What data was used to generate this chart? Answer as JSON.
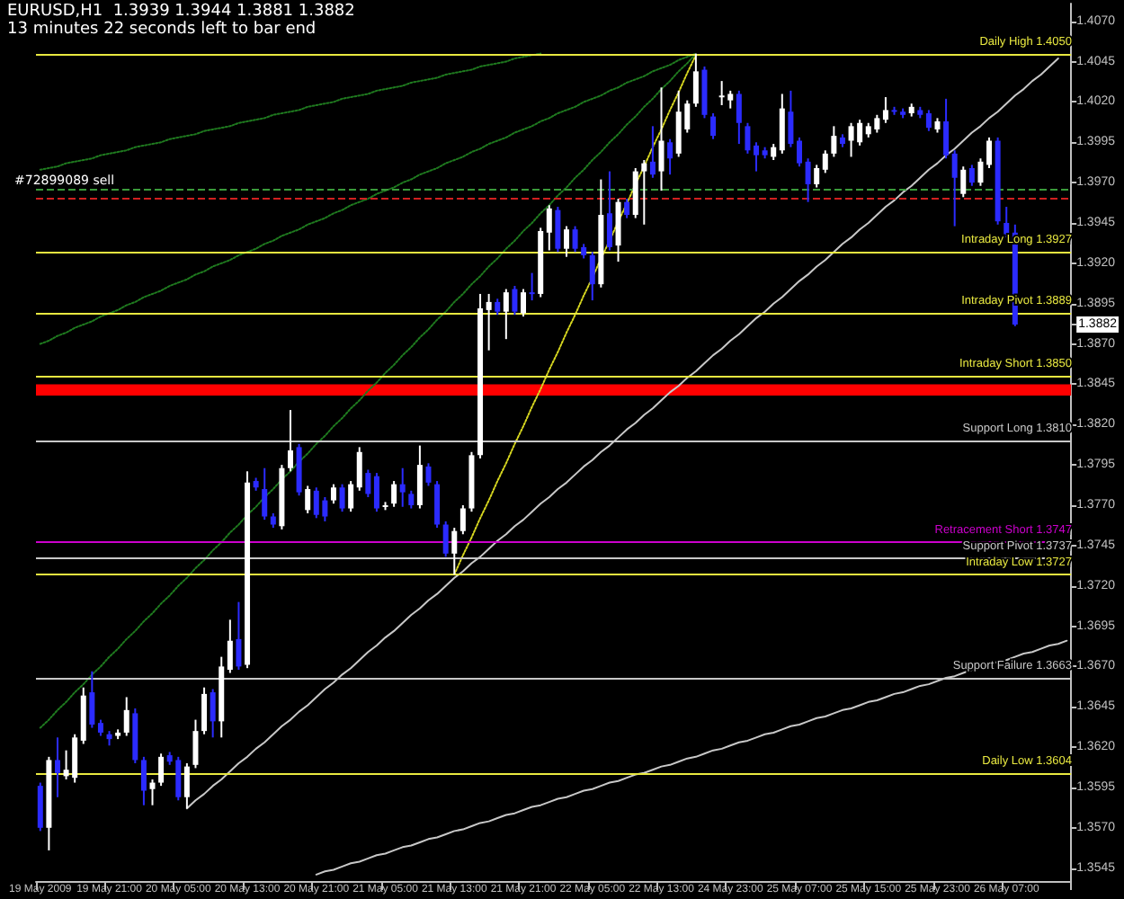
{
  "chart_data": {
    "type": "candlestick",
    "title": "EURUSD,H1  1.3939 1.3944 1.3881 1.3882",
    "subtitle": "13 minutes 22 seconds left to bar end",
    "categories": [
      "19 May 2009",
      null,
      null,
      null,
      null,
      null,
      null,
      null,
      "19 May 21:00",
      null,
      null,
      null,
      null,
      null,
      null,
      null,
      "20 May 05:00",
      null,
      null,
      null,
      null,
      null,
      null,
      null,
      "20 May 13:00",
      null,
      null,
      null,
      null,
      null,
      null,
      null,
      "20 May 21:00",
      null,
      null,
      null,
      null,
      null,
      null,
      null,
      "21 May 05:00",
      null,
      null,
      null,
      null,
      null,
      null,
      null,
      "21 May 13:00",
      null,
      null,
      null,
      null,
      null,
      null,
      null,
      "21 May 21:00",
      null,
      null,
      null,
      null,
      null,
      null,
      null,
      "22 May 05:00",
      null,
      null,
      null,
      null,
      null,
      null,
      null,
      "22 May 13:00",
      null,
      null,
      null,
      null,
      null,
      null,
      null,
      "24 May 23:00",
      null,
      null,
      null,
      null,
      null,
      null,
      null,
      "25 May 07:00",
      null,
      null,
      null,
      null,
      null,
      null,
      null,
      "25 May 15:00",
      null,
      null,
      null,
      null,
      null,
      null,
      null,
      "25 May 23:00",
      null,
      null,
      null,
      null,
      null,
      null,
      null,
      "26 May 07:00",
      null,
      null,
      null,
      null,
      null,
      null,
      null
    ],
    "ohlc": [
      [
        1.3596,
        1.3598,
        1.3568,
        1.357
      ],
      [
        1.357,
        1.3614,
        1.3556,
        1.3612
      ],
      [
        1.3612,
        1.3626,
        1.3589,
        1.3604
      ],
      [
        1.3602,
        1.3618,
        1.36,
        1.3606
      ],
      [
        1.3601,
        1.3628,
        1.3598,
        1.3626
      ],
      [
        1.3624,
        1.3657,
        1.3622,
        1.3652
      ],
      [
        1.3654,
        1.3667,
        1.3632,
        1.3634
      ],
      [
        1.3635,
        1.3637,
        1.3627,
        1.3629
      ],
      [
        1.3628,
        1.363,
        1.3621,
        1.3625
      ],
      [
        1.3627,
        1.3631,
        1.3625,
        1.3629
      ],
      [
        1.3629,
        1.3651,
        1.3627,
        1.3643
      ],
      [
        1.3641,
        1.3644,
        1.361,
        1.3612
      ],
      [
        1.3612,
        1.3614,
        1.3584,
        1.3593
      ],
      [
        1.3594,
        1.36,
        1.3584,
        1.3598
      ],
      [
        1.3598,
        1.3616,
        1.3596,
        1.3614
      ],
      [
        1.3615,
        1.3617,
        1.3609,
        1.3611
      ],
      [
        1.3612,
        1.3614,
        1.3587,
        1.3589
      ],
      [
        1.3589,
        1.361,
        1.3582,
        1.3608
      ],
      [
        1.3609,
        1.3637,
        1.3607,
        1.363
      ],
      [
        1.363,
        1.3657,
        1.3628,
        1.3653
      ],
      [
        1.3654,
        1.3656,
        1.3626,
        1.3636
      ],
      [
        1.3636,
        1.3676,
        1.3626,
        1.367
      ],
      [
        1.3668,
        1.3699,
        1.3666,
        1.3686
      ],
      [
        1.3687,
        1.371,
        1.3668,
        1.367
      ],
      [
        1.3671,
        1.3791,
        1.3669,
        1.3784
      ],
      [
        1.3785,
        1.3787,
        1.3779,
        1.3781
      ],
      [
        1.378,
        1.3793,
        1.3761,
        1.3763
      ],
      [
        1.3763,
        1.3765,
        1.3756,
        1.3758
      ],
      [
        1.3757,
        1.3795,
        1.3755,
        1.3793
      ],
      [
        1.3793,
        1.3829,
        1.3791,
        1.3804
      ],
      [
        1.3806,
        1.3808,
        1.3776,
        1.3778
      ],
      [
        1.3767,
        1.3782,
        1.3765,
        1.378
      ],
      [
        1.3779,
        1.3781,
        1.3762,
        1.3764
      ],
      [
        1.3773,
        1.3775,
        1.376,
        1.3763
      ],
      [
        1.3773,
        1.3783,
        1.3771,
        1.3781
      ],
      [
        1.3781,
        1.3783,
        1.3766,
        1.3768
      ],
      [
        1.3768,
        1.3785,
        1.3766,
        1.3783
      ],
      [
        1.3781,
        1.3806,
        1.3779,
        1.3803
      ],
      [
        1.379,
        1.3792,
        1.3775,
        1.3777
      ],
      [
        1.3788,
        1.379,
        1.3766,
        1.3768
      ],
      [
        1.3769,
        1.3772,
        1.3767,
        1.377
      ],
      [
        1.3771,
        1.3785,
        1.3769,
        1.3783
      ],
      [
        1.3783,
        1.3793,
        1.3769,
        1.3778
      ],
      [
        1.3777,
        1.3779,
        1.3768,
        1.377
      ],
      [
        1.377,
        1.3807,
        1.3768,
        1.3795
      ],
      [
        1.3794,
        1.3796,
        1.3782,
        1.3784
      ],
      [
        1.3783,
        1.3785,
        1.3756,
        1.3758
      ],
      [
        1.3758,
        1.376,
        1.3738,
        1.374
      ],
      [
        1.374,
        1.3756,
        1.3727,
        1.3754
      ],
      [
        1.3754,
        1.377,
        1.3752,
        1.3768
      ],
      [
        1.3768,
        1.3803,
        1.3766,
        1.3801
      ],
      [
        1.3801,
        1.3901,
        1.3799,
        1.3892
      ],
      [
        1.3891,
        1.3901,
        1.3866,
        1.3896
      ],
      [
        1.3896,
        1.3898,
        1.3888,
        1.389
      ],
      [
        1.389,
        1.3904,
        1.3873,
        1.3902
      ],
      [
        1.3904,
        1.3906,
        1.3888,
        1.389
      ],
      [
        1.3889,
        1.3904,
        1.3887,
        1.3902
      ],
      [
        1.3902,
        1.3914,
        1.3897,
        1.3901
      ],
      [
        1.3901,
        1.3942,
        1.3899,
        1.394
      ],
      [
        1.3939,
        1.3956,
        1.3928,
        1.3954
      ],
      [
        1.3953,
        1.3955,
        1.3927,
        1.3929
      ],
      [
        1.3929,
        1.3943,
        1.3924,
        1.3941
      ],
      [
        1.3941,
        1.3943,
        1.3927,
        1.3929
      ],
      [
        1.393,
        1.3932,
        1.3923,
        1.3925
      ],
      [
        1.3925,
        1.3927,
        1.3897,
        1.3907
      ],
      [
        1.3907,
        1.3972,
        1.3905,
        1.395
      ],
      [
        1.3951,
        1.3977,
        1.3928,
        1.393
      ],
      [
        1.3931,
        1.396,
        1.3921,
        1.3958
      ],
      [
        1.3958,
        1.396,
        1.3948,
        1.395
      ],
      [
        1.395,
        1.3979,
        1.3948,
        1.3977
      ],
      [
        1.3977,
        1.3984,
        1.3944,
        1.3982
      ],
      [
        1.3983,
        1.4005,
        1.3973,
        1.3975
      ],
      [
        1.3977,
        1.4029,
        1.3965,
        1.3996
      ],
      [
        1.3995,
        1.3997,
        1.3975,
        1.3985
      ],
      [
        1.3988,
        1.4027,
        1.3986,
        1.4014
      ],
      [
        1.4003,
        1.4021,
        1.4001,
        1.4019
      ],
      [
        1.4019,
        1.405,
        1.4017,
        1.4039
      ],
      [
        1.404,
        1.4042,
        1.401,
        1.4012
      ],
      [
        1.4011,
        1.4013,
        1.3997,
        1.3999
      ],
      [
        1.4023,
        1.4033,
        1.4018,
        1.4024
      ],
      [
        1.4021,
        1.4027,
        1.4016,
        1.4025
      ],
      [
        1.4025,
        1.4027,
        1.3994,
        1.4007
      ],
      [
        1.4005,
        1.4007,
        1.3988,
        1.399
      ],
      [
        1.3993,
        1.3995,
        1.3977,
        1.3987
      ],
      [
        1.399,
        1.3992,
        1.3985,
        1.3987
      ],
      [
        1.3986,
        1.3994,
        1.3984,
        1.3992
      ],
      [
        1.399,
        1.4025,
        1.3988,
        1.4016
      ],
      [
        1.4014,
        1.4027,
        1.3992,
        1.3994
      ],
      [
        1.3996,
        1.3998,
        1.398,
        1.3982
      ],
      [
        1.3983,
        1.3985,
        1.3958,
        1.3969
      ],
      [
        1.3969,
        1.3981,
        1.3967,
        1.3979
      ],
      [
        1.3978,
        1.399,
        1.3976,
        1.3988
      ],
      [
        1.3988,
        1.4005,
        1.3986,
        1.3999
      ],
      [
        1.3998,
        1.4,
        1.3992,
        1.3994
      ],
      [
        1.3996,
        1.4007,
        1.3986,
        1.4005
      ],
      [
        1.3995,
        1.4009,
        1.3993,
        1.4007
      ],
      [
        1.4,
        1.4007,
        1.3998,
        1.4005
      ],
      [
        1.4003,
        1.4012,
        1.4001,
        1.401
      ],
      [
        1.4009,
        1.4023,
        1.4007,
        1.4015
      ],
      [
        1.4015,
        1.4017,
        1.4012,
        1.4014
      ],
      [
        1.4014,
        1.4016,
        1.401,
        1.4012
      ],
      [
        1.4013,
        1.4019,
        1.4011,
        1.4017
      ],
      [
        1.4015,
        1.4017,
        1.401,
        1.4012
      ],
      [
        1.4013,
        1.4015,
        1.4002,
        1.4004
      ],
      [
        1.4003,
        1.401,
        1.4001,
        1.4008
      ],
      [
        1.4008,
        1.4022,
        1.3985,
        1.3987
      ],
      [
        1.3988,
        1.399,
        1.3943,
        1.3973
      ],
      [
        1.3963,
        1.398,
        1.3961,
        1.3978
      ],
      [
        1.3979,
        1.3981,
        1.3968,
        1.397
      ],
      [
        1.397,
        1.3985,
        1.3968,
        1.3983
      ],
      [
        1.3981,
        1.3998,
        1.3979,
        1.3996
      ],
      [
        1.3996,
        1.3998,
        1.3944,
        1.3946
      ],
      [
        1.3945,
        1.3955,
        1.3936,
        1.3938
      ],
      [
        1.3939,
        1.3944,
        1.3881,
        1.3882
      ],
      null,
      null,
      null,
      null,
      null,
      null
    ],
    "colors": [
      "#2b2bff",
      "#ffffff",
      "#2b2bff",
      "#ffffff",
      "#ffffff",
      "#ffffff",
      "#2b2bff",
      "#2b2bff",
      "#2b2bff",
      "#ffffff",
      "#ffffff",
      "#2b2bff",
      "#2b2bff",
      "#ffffff",
      "#ffffff",
      "#2b2bff",
      "#2b2bff",
      "#ffffff",
      "#ffffff",
      "#ffffff",
      "#2b2bff",
      "#ffffff",
      "#ffffff",
      "#2b2bff",
      "#ffffff",
      "#2b2bff",
      "#2b2bff",
      "#2b2bff",
      "#ffffff",
      "#ffffff",
      "#2b2bff",
      "#ffffff",
      "#2b2bff",
      "#2b2bff",
      "#ffffff",
      "#2b2bff",
      "#ffffff",
      "#ffffff",
      "#2b2bff",
      "#2b2bff",
      "#ffffff",
      "#ffffff",
      "#2b2bff",
      "#2b2bff",
      "#ffffff",
      "#2b2bff",
      "#2b2bff",
      "#2b2bff",
      "#ffffff",
      "#ffffff",
      "#ffffff",
      "#ffffff",
      "#ffffff",
      "#2b2bff",
      "#ffffff",
      "#2b2bff",
      "#ffffff",
      "#2b2bff",
      "#ffffff",
      "#ffffff",
      "#2b2bff",
      "#ffffff",
      "#2b2bff",
      "#2b2bff",
      "#2b2bff",
      "#ffffff",
      "#2b2bff",
      "#ffffff",
      "#2b2bff",
      "#ffffff",
      "#ffffff",
      "#2b2bff",
      "#ffffff",
      "#2b2bff",
      "#ffffff",
      "#ffffff",
      "#ffffff",
      "#2b2bff",
      "#2b2bff",
      "#ffffff",
      "#ffffff",
      "#2b2bff",
      "#2b2bff",
      "#2b2bff",
      "#2b2bff",
      "#ffffff",
      "#ffffff",
      "#2b2bff",
      "#2b2bff",
      "#2b2bff",
      "#ffffff",
      "#ffffff",
      "#ffffff",
      "#2b2bff",
      "#ffffff",
      "#ffffff",
      "#ffffff",
      "#ffffff",
      "#ffffff",
      "#2b2bff",
      "#2b2bff",
      "#ffffff",
      "#2b2bff",
      "#2b2bff",
      "#ffffff",
      "#2b2bff",
      "#2b2bff",
      "#ffffff",
      "#2b2bff",
      "#ffffff",
      "#ffffff",
      "#2b2bff",
      "#2b2bff",
      "#2b2bff",
      null,
      null,
      null,
      null,
      null,
      null
    ],
    "series": [
      {
        "type": "line",
        "color": "#c8c8c8",
        "line_style": "solid",
        "values": [
          null,
          null,
          null,
          null,
          null,
          null,
          null,
          null,
          null,
          null,
          null,
          null,
          null,
          null,
          null,
          null,
          null,
          1.3582,
          1.3587,
          1.3591,
          1.3596,
          1.36,
          1.3605,
          1.361,
          1.3614,
          1.3619,
          1.3623,
          1.3628,
          1.3633,
          1.3637,
          1.3642,
          1.3646,
          1.3651,
          1.3656,
          1.366,
          1.3665,
          1.3669,
          1.3674,
          1.3679,
          1.3683,
          1.3688,
          1.3692,
          1.3697,
          1.3702,
          1.3706,
          1.3711,
          1.3715,
          1.372,
          1.3725,
          1.3729,
          1.3734,
          1.3738,
          1.3743,
          1.3748,
          1.3752,
          1.3757,
          1.3761,
          1.3766,
          1.3771,
          1.3775,
          1.378,
          1.3784,
          1.3789,
          1.3794,
          1.3798,
          1.3803,
          1.3807,
          1.3812,
          1.3817,
          1.3821,
          1.3826,
          1.383,
          1.3835,
          1.384,
          1.3844,
          1.3849,
          1.3853,
          1.3858,
          1.3863,
          1.3867,
          1.3872,
          1.3876,
          1.3881,
          1.3886,
          1.389,
          1.3895,
          1.3899,
          1.3904,
          1.3909,
          1.3913,
          1.3918,
          1.3922,
          1.3927,
          1.3932,
          1.3936,
          1.3941,
          1.3945,
          1.395,
          1.3955,
          1.3959,
          1.3964,
          1.3968,
          1.3973,
          1.3978,
          1.3982,
          1.3987,
          1.3991,
          1.3996,
          1.4001,
          1.4005,
          1.401,
          1.4014,
          1.4019,
          1.4024,
          1.4028,
          1.4033,
          1.4037,
          1.4042,
          1.4047,
          null
        ]
      },
      {
        "type": "line",
        "color": "#c8c8c8",
        "line_style": "solid",
        "values": [
          null,
          null,
          null,
          null,
          null,
          null,
          null,
          null,
          null,
          null,
          null,
          null,
          null,
          null,
          null,
          null,
          null,
          null,
          null,
          null,
          null,
          null,
          null,
          null,
          null,
          null,
          null,
          null,
          null,
          null,
          null,
          null,
          1.3541,
          1.3543,
          1.3544,
          1.3546,
          1.3548,
          1.3549,
          1.3551,
          1.3553,
          1.3554,
          1.3556,
          1.3558,
          1.3559,
          1.3561,
          1.3563,
          1.3564,
          1.3566,
          1.3568,
          1.3569,
          1.3571,
          1.3573,
          1.3574,
          1.3576,
          1.3578,
          1.3579,
          1.3581,
          1.3583,
          1.3584,
          1.3586,
          1.3588,
          1.3589,
          1.3591,
          1.3593,
          1.3594,
          1.3596,
          1.3598,
          1.3599,
          1.3601,
          1.3603,
          1.3604,
          1.3606,
          1.3608,
          1.3609,
          1.3611,
          1.3613,
          1.3614,
          1.3616,
          1.3618,
          1.3619,
          1.3621,
          1.3623,
          1.3624,
          1.3626,
          1.3628,
          1.3629,
          1.3631,
          1.3633,
          1.3634,
          1.3636,
          1.3638,
          1.3639,
          1.3641,
          1.3643,
          1.3644,
          1.3646,
          1.3648,
          1.3649,
          1.3651,
          1.3653,
          1.3654,
          1.3656,
          1.3658,
          1.3659,
          1.3661,
          1.3663,
          1.3664,
          1.3666,
          1.3668,
          1.3669,
          1.3671,
          1.3673,
          1.3674,
          1.3676,
          1.3678,
          1.3679,
          1.3681,
          1.3683,
          1.3684,
          1.3686
        ]
      },
      {
        "type": "line",
        "color": "#d8d820",
        "line_style": "dotted",
        "values": [
          null,
          null,
          null,
          null,
          null,
          null,
          null,
          null,
          null,
          null,
          null,
          null,
          null,
          null,
          null,
          null,
          null,
          null,
          null,
          null,
          null,
          null,
          null,
          null,
          null,
          null,
          null,
          null,
          null,
          null,
          null,
          null,
          null,
          null,
          null,
          null,
          null,
          null,
          null,
          null,
          null,
          null,
          null,
          null,
          null,
          null,
          null,
          null,
          1.3727,
          1.3739,
          1.375,
          1.3762,
          1.3773,
          1.3785,
          1.3796,
          1.3808,
          1.3819,
          1.3831,
          1.3842,
          1.3854,
          1.3865,
          1.3877,
          1.3888,
          1.39,
          1.3911,
          1.3923,
          1.3934,
          1.3946,
          1.3957,
          1.3969,
          1.398,
          1.3992,
          1.4003,
          1.4015,
          1.4026,
          1.4038,
          1.4049,
          null,
          null,
          null,
          null,
          null,
          null,
          null,
          null,
          null,
          null,
          null,
          null,
          null,
          null,
          null,
          null,
          null,
          null,
          null,
          null,
          null,
          null,
          null,
          null,
          null,
          null,
          null,
          null,
          null,
          null,
          null,
          null,
          null,
          null,
          null,
          null,
          null,
          null,
          null,
          null,
          null,
          null,
          null
        ]
      },
      {
        "type": "line",
        "color": "#1f7a1f",
        "line_style": "dotted",
        "values": [
          1.3978,
          1.3979,
          1.398,
          1.3982,
          1.3983,
          1.3984,
          1.3985,
          1.3987,
          1.3988,
          1.3989,
          1.399,
          1.3992,
          1.3993,
          1.3994,
          1.3995,
          1.3997,
          1.3998,
          1.3999,
          1.4,
          1.4002,
          1.4003,
          1.4004,
          1.4005,
          1.4007,
          1.4008,
          1.4009,
          1.401,
          1.4012,
          1.4013,
          1.4014,
          1.4015,
          1.4017,
          1.4018,
          1.4019,
          1.402,
          1.4022,
          1.4023,
          1.4024,
          1.4025,
          1.4027,
          1.4028,
          1.4029,
          1.403,
          1.4032,
          1.4033,
          1.4034,
          1.4035,
          1.4037,
          1.4038,
          1.4039,
          1.404,
          1.4042,
          1.4043,
          1.4044,
          1.4045,
          1.4047,
          1.4048,
          1.4049,
          1.405,
          null,
          null,
          null,
          null,
          null,
          null,
          null,
          null,
          null,
          null,
          null,
          null,
          null,
          null,
          null,
          null,
          null,
          null,
          null,
          null,
          null,
          null,
          null,
          null,
          null,
          null,
          null,
          null,
          null,
          null,
          null,
          null,
          null,
          null,
          null,
          null,
          null,
          null,
          null,
          null,
          null,
          null,
          null,
          null,
          null,
          null,
          null,
          null,
          null,
          null,
          null,
          null,
          null,
          null,
          null,
          null,
          null,
          null,
          null,
          null,
          null
        ]
      },
      {
        "type": "line",
        "color": "#1f7a1f",
        "line_style": "dotted",
        "values": [
          1.387,
          1.3872,
          1.3875,
          1.3877,
          1.388,
          1.3882,
          1.3884,
          1.3887,
          1.3889,
          1.3891,
          1.3894,
          1.3896,
          1.3899,
          1.3901,
          1.3903,
          1.3906,
          1.3908,
          1.391,
          1.3913,
          1.3915,
          1.3918,
          1.392,
          1.3922,
          1.3925,
          1.3927,
          1.3929,
          1.3932,
          1.3934,
          1.3937,
          1.3939,
          1.3941,
          1.3944,
          1.3946,
          1.3948,
          1.3951,
          1.3953,
          1.3956,
          1.3958,
          1.396,
          1.3963,
          1.3965,
          1.3967,
          1.397,
          1.3972,
          1.3975,
          1.3977,
          1.3979,
          1.3982,
          1.3984,
          1.3986,
          1.3989,
          1.3991,
          1.3994,
          1.3996,
          1.3998,
          1.4001,
          1.4003,
          1.4005,
          1.4008,
          1.401,
          1.4013,
          1.4015,
          1.4017,
          1.402,
          1.4022,
          1.4024,
          1.4027,
          1.4029,
          1.4032,
          1.4034,
          1.4036,
          1.4039,
          1.4041,
          1.4043,
          1.4046,
          1.4048,
          1.405,
          null,
          null,
          null,
          null,
          null,
          null,
          null,
          null,
          null,
          null,
          null,
          null,
          null,
          null,
          null,
          null,
          null,
          null,
          null,
          null,
          null,
          null,
          null,
          null,
          null,
          null,
          null,
          null,
          null,
          null,
          null,
          null,
          null,
          null,
          null,
          null,
          null,
          null,
          null,
          null,
          null,
          null,
          null
        ]
      },
      {
        "type": "line",
        "color": "#1f7a1f",
        "line_style": "dotted",
        "values": [
          1.3632,
          1.3637,
          1.3643,
          1.3648,
          1.3654,
          1.3659,
          1.3665,
          1.367,
          1.3676,
          1.3681,
          1.3687,
          1.3692,
          1.3698,
          1.3703,
          1.3709,
          1.3714,
          1.372,
          1.3725,
          1.3731,
          1.3736,
          1.3742,
          1.3747,
          1.3753,
          1.3758,
          1.3764,
          1.3769,
          1.3775,
          1.378,
          1.3786,
          1.3791,
          1.3797,
          1.3802,
          1.3808,
          1.3813,
          1.3819,
          1.3824,
          1.383,
          1.3835,
          1.3841,
          1.3846,
          1.3852,
          1.3857,
          1.3863,
          1.3868,
          1.3874,
          1.3879,
          1.3885,
          1.389,
          1.3896,
          1.3901,
          1.3907,
          1.3912,
          1.3918,
          1.3923,
          1.3929,
          1.3934,
          1.394,
          1.3945,
          1.3951,
          1.3956,
          1.3962,
          1.3967,
          1.3973,
          1.3978,
          1.3984,
          1.3989,
          1.3995,
          1.4,
          1.4006,
          1.4011,
          1.4017,
          1.4022,
          1.4028,
          1.4033,
          1.4039,
          1.4044,
          1.405,
          null,
          null,
          null,
          null,
          null,
          null,
          null,
          null,
          null,
          null,
          null,
          null,
          null,
          null,
          null,
          null,
          null,
          null,
          null,
          null,
          null,
          null,
          null,
          null,
          null,
          null,
          null,
          null,
          null,
          null,
          null,
          null,
          null,
          null,
          null,
          null,
          null,
          null,
          null,
          null,
          null,
          null,
          null
        ]
      }
    ],
    "ylim": [
      1.3537,
      1.4081
    ],
    "yticks": [
      1.3545,
      {
        "value": 1.357,
        "label": "1.3570"
      },
      1.3595,
      {
        "value": 1.362,
        "label": "1.3620"
      },
      1.3645,
      {
        "value": 1.367,
        "label": "1.3670"
      },
      1.3695,
      {
        "value": 1.372,
        "label": "1.3720"
      },
      1.3745,
      {
        "value": 1.377,
        "label": "1.3770"
      },
      1.3795,
      {
        "value": 1.382,
        "label": "1.3820"
      },
      1.3845,
      {
        "value": 1.387,
        "label": "1.3870"
      },
      {
        "value": 1.3882,
        "label": "1.3882"
      },
      1.3895,
      {
        "value": 1.392,
        "label": "1.3920"
      },
      1.3945,
      {
        "value": 1.397,
        "label": "1.3970"
      },
      1.3995,
      {
        "value": 1.402,
        "label": "1.4020"
      },
      1.4045,
      {
        "value": 1.407,
        "label": "1.4070"
      }
    ],
    "ref_lines": [
      {
        "axis": "y",
        "value": 1.405,
        "label": "Daily High 1.4050",
        "color": "#e8e840"
      },
      {
        "axis": "y",
        "value": 1.3966,
        "color": "#3a9a3a",
        "line_style": "dashed"
      },
      {
        "axis": "y",
        "value": 1.396,
        "color": "#d02020",
        "line_style": "dashed"
      },
      {
        "axis": "y",
        "value": 1.3927,
        "label": "Intraday Long 1.3927",
        "color": "#e8e840"
      },
      {
        "axis": "y",
        "value": 1.3889,
        "label": "Intraday Pivot 1.3889",
        "color": "#e8e840"
      },
      {
        "axis": "y",
        "value": 1.385,
        "label": "Intraday Short 1.3850",
        "color": "#e8e840"
      },
      {
        "axis": "y",
        "value": 1.381,
        "label": "Support Long 1.3810",
        "color": "#c8c8c8"
      },
      {
        "axis": "y",
        "value": 1.3747,
        "label": "Retracement Short 1.3747",
        "color": "#cc00cc"
      },
      {
        "axis": "y",
        "value": 1.3737,
        "label": "Support Pivot 1.3737",
        "color": "#c8c8c8"
      },
      {
        "axis": "y",
        "value": 1.3727,
        "label": "Intraday Low 1.3727",
        "color": "#e8e840"
      },
      {
        "axis": "y",
        "value": 1.3663,
        "label": "Support Failure 1.3663",
        "color": "#c8c8c8"
      },
      {
        "axis": "y",
        "value": 1.3604,
        "label": "Daily Low 1.3604",
        "color": "#e8e840"
      }
    ],
    "bands": [
      {
        "axis": "y",
        "from": 1.3838,
        "to": 1.3845,
        "color": "#ff0000"
      }
    ],
    "annotations": [
      "#72899089 sell"
    ]
  }
}
